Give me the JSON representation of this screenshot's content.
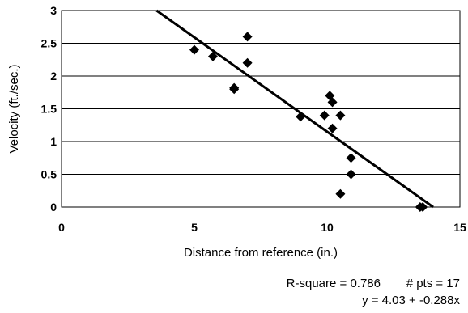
{
  "chart_data": {
    "type": "scatter",
    "title": "",
    "xlabel": "Distance from reference (in.)",
    "ylabel": "Velocity (ft./sec.)",
    "xlim": [
      0,
      15
    ],
    "ylim": [
      0,
      3
    ],
    "x_ticks": [
      0,
      5,
      10,
      15
    ],
    "y_ticks": [
      0,
      0.5,
      1,
      1.5,
      2,
      2.5,
      3
    ],
    "grid": "horizontal",
    "marker": "diamond",
    "marker_color": "#000000",
    "points": [
      {
        "x": 5.0,
        "y": 2.4
      },
      {
        "x": 5.7,
        "y": 2.3
      },
      {
        "x": 6.5,
        "y": 1.8
      },
      {
        "x": 6.5,
        "y": 1.82
      },
      {
        "x": 7.0,
        "y": 2.6
      },
      {
        "x": 7.0,
        "y": 2.2
      },
      {
        "x": 9.0,
        "y": 1.38
      },
      {
        "x": 9.9,
        "y": 1.4
      },
      {
        "x": 10.1,
        "y": 1.7
      },
      {
        "x": 10.2,
        "y": 1.6
      },
      {
        "x": 10.2,
        "y": 1.2
      },
      {
        "x": 10.5,
        "y": 1.4
      },
      {
        "x": 10.5,
        "y": 0.2
      },
      {
        "x": 10.9,
        "y": 0.75
      },
      {
        "x": 10.9,
        "y": 0.5
      },
      {
        "x": 13.5,
        "y": 0.0
      },
      {
        "x": 13.6,
        "y": 0.0
      }
    ],
    "fit": {
      "intercept": 4.03,
      "slope": -0.288,
      "line_color": "#000000"
    },
    "stats": {
      "r_square_text": "R-square = 0.786",
      "pts_text": "# pts = 17",
      "equation_text": "y = 4.03 + -0.288x"
    }
  }
}
